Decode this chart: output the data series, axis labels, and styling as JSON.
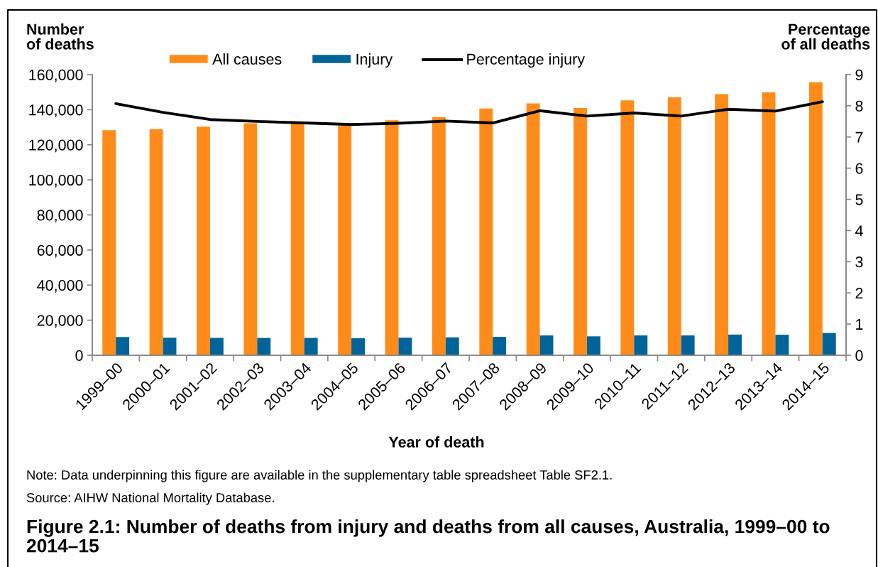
{
  "chart_data": {
    "type": "bar",
    "title": "Figure 2.1: Number of deaths from injury and deaths from all causes, Australia, 1999–00 to 2014–15",
    "xlabel": "Year of death",
    "ylabel": "Number\nof deaths",
    "y2label": "Percentage\nof all deaths",
    "categories": [
      "1999–00",
      "2000–01",
      "2001–02",
      "2002–03",
      "2003–04",
      "2004–05",
      "2005–06",
      "2006–07",
      "2007–08",
      "2008–09",
      "2009–10",
      "2010–11",
      "2011–12",
      "2012–13",
      "2013–14",
      "2014–15"
    ],
    "series": [
      {
        "name": "All causes",
        "color": "#ff8c1a",
        "values": [
          128300,
          128900,
          130300,
          132300,
          132500,
          131000,
          134000,
          135800,
          140700,
          143600,
          141000,
          145300,
          147000,
          148900,
          149900,
          155600
        ]
      },
      {
        "name": "Injury",
        "color": "#00649a",
        "values": [
          10400,
          10000,
          9900,
          9900,
          9900,
          9700,
          10000,
          10200,
          10500,
          11300,
          10800,
          11300,
          11300,
          11800,
          11700,
          12700
        ]
      },
      {
        "name": "Percentage injury",
        "type": "line",
        "axis": "y2",
        "color": "#000000",
        "values": [
          8.07,
          7.79,
          7.56,
          7.5,
          7.45,
          7.4,
          7.44,
          7.51,
          7.45,
          7.84,
          7.67,
          7.77,
          7.67,
          7.89,
          7.83,
          8.13
        ]
      }
    ],
    "ylim": [
      0,
      160000
    ],
    "yticks": [
      0,
      {
        "value": 20000,
        "label": "20,000"
      },
      {
        "value": 40000,
        "label": "40,000"
      },
      {
        "value": 60000,
        "label": "60,000"
      },
      {
        "value": 80000,
        "label": "80,000"
      },
      {
        "value": 100000,
        "label": "100,000"
      },
      {
        "value": 120000,
        "label": "120,000"
      },
      {
        "value": 140000,
        "label": "140,000"
      },
      {
        "value": 160000,
        "label": "160,000"
      }
    ],
    "y2lim": [
      0,
      9
    ],
    "y2ticks": [
      0,
      1,
      2,
      3,
      4,
      5,
      6,
      7,
      8,
      9
    ],
    "legend": "top",
    "annotations": [
      "Note: Data underpinning this figure are available in the supplementary table spreadsheet Table SF2.1.",
      "Source: AIHW National Mortality Database."
    ]
  }
}
